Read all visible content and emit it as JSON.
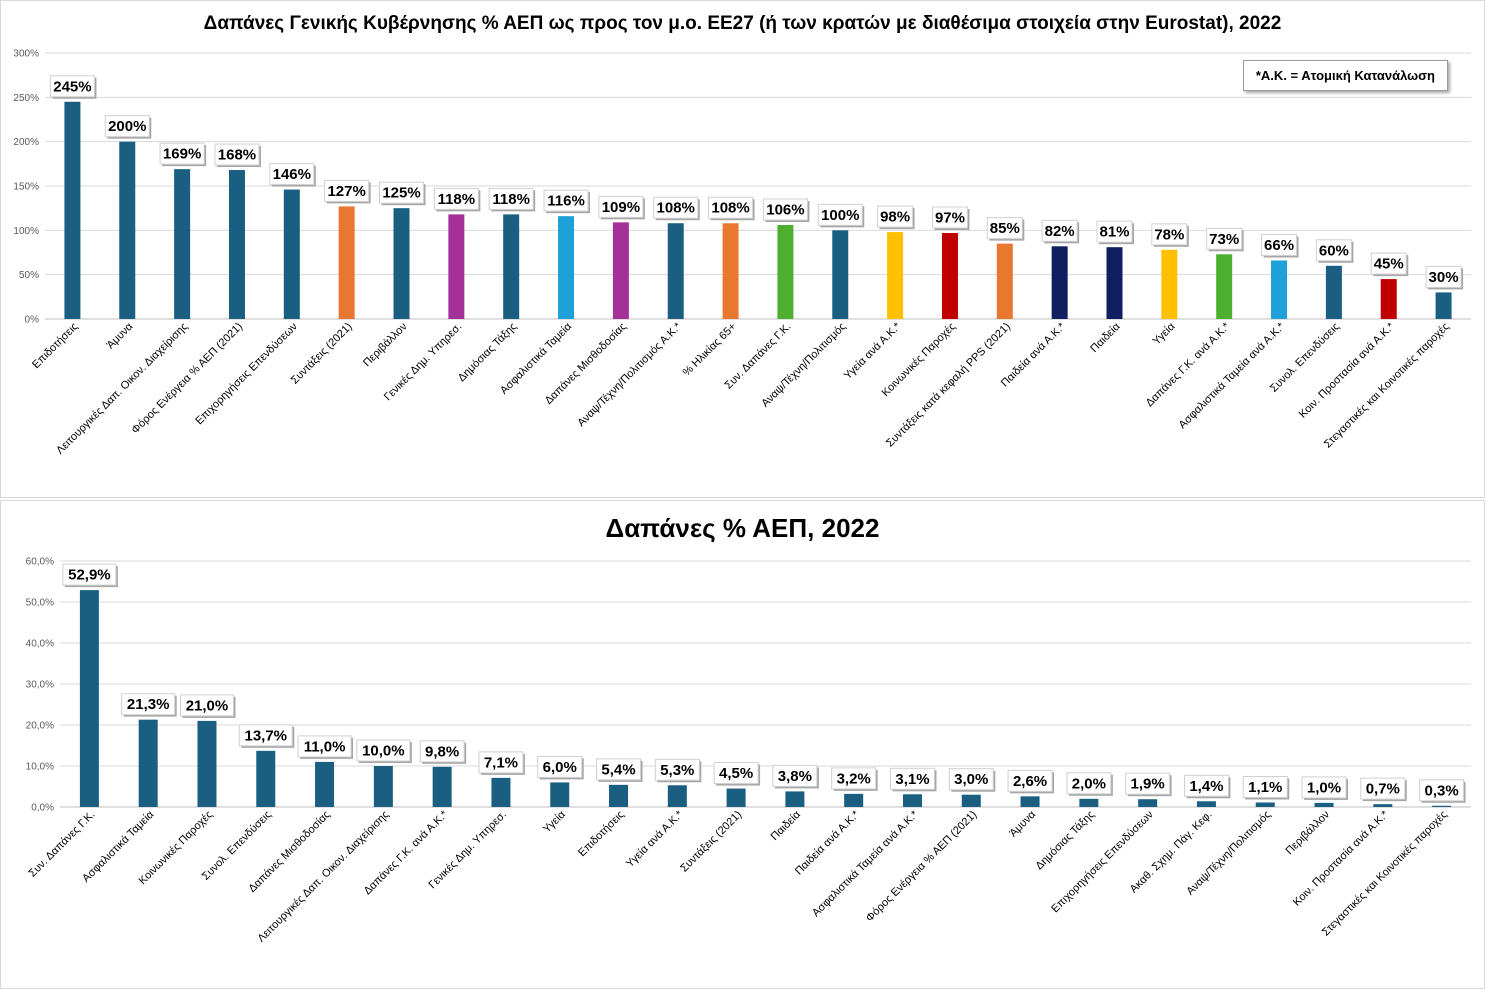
{
  "colors": {
    "blue": "#1a5f82",
    "orange": "#e87830",
    "purple": "#a33198",
    "skyblue": "#1ea0d8",
    "green": "#4caf2f",
    "yellow": "#ffc000",
    "red": "#c00000",
    "navy": "#0f1f60",
    "grid": "#d9d9d9"
  },
  "chart_data": [
    {
      "type": "bar",
      "title": "Δαπάνες Γενικής Κυβέρνησης % ΑΕΠ ως προς τον μ.ο. ΕΕ27 (ή των κρατών με διαθέσιμα στοιχεία στην Eurostat), 2022",
      "legend_note": "*Α.Κ. = Ατομική Κατανάλωση",
      "legend_position": "top-right",
      "ylim": [
        0,
        300
      ],
      "yticks": [
        0,
        50,
        100,
        150,
        200,
        250,
        300
      ],
      "ytick_labels": [
        "0%",
        "50%",
        "100%",
        "150%",
        "200%",
        "250%",
        "300%"
      ],
      "categories": [
        "Επιδοτήσεις",
        "Άμυνα",
        "Λειτουργικές Δαπ. Οικον. Διαχείρισης",
        "Φόρος Ενέργεια % ΑΕΠ (2021)",
        "Επιχορηγήσεις Επενδύσεων",
        "Συντάξεις (2021)",
        "Περιβάλλον",
        "Γενικές Δημ. Υπηρεσ.",
        "Δημόσιας Τάξης",
        "Ασφαλιστικά Ταμεία",
        "Δαπάνες Μισθοδοσίας",
        "Αναψ/Τέχνη/Πολιτισμός Α.Κ.*",
        "% Ηλικίας 65+",
        "Συν. Δαπάνες Γ.Κ.",
        "Αναψ/Τέχνη/Πολιτισμός",
        "Υγεία ανά Α.Κ.*",
        "Κοινωνικές Παροχές",
        "Συντάξεις κατά κεφαλή PPS (2021)",
        "Παιδεία ανά Α.Κ.*",
        "Παιδεία",
        "Υγεία",
        "Δαπάνες Γ.Κ. ανά Α.Κ.*",
        "Ασφαλιστικά Ταμεία ανά Α.Κ.*",
        "Συνολ. Επενδύσεις",
        "Κοιν. Προστασία ανά Α.Κ.*",
        "Στεγαστικές και Κοινοτικές παροχές"
      ],
      "values": [
        245,
        200,
        169,
        168,
        146,
        127,
        125,
        118,
        118,
        116,
        109,
        108,
        108,
        106,
        100,
        98,
        97,
        85,
        82,
        81,
        78,
        73,
        66,
        60,
        45,
        30
      ],
      "data_labels": [
        "245%",
        "200%",
        "169%",
        "168%",
        "146%",
        "127%",
        "125%",
        "118%",
        "118%",
        "116%",
        "109%",
        "108%",
        "108%",
        "106%",
        "100%",
        "98%",
        "97%",
        "85%",
        "82%",
        "81%",
        "78%",
        "73%",
        "66%",
        "60%",
        "45%",
        "30%"
      ],
      "bar_colors": [
        "blue",
        "blue",
        "blue",
        "blue",
        "blue",
        "orange",
        "blue",
        "purple",
        "blue",
        "skyblue",
        "purple",
        "blue",
        "orange",
        "green",
        "blue",
        "yellow",
        "red",
        "orange",
        "navy",
        "navy",
        "yellow",
        "green",
        "skyblue",
        "blue",
        "red",
        "blue"
      ],
      "grid": true
    },
    {
      "type": "bar",
      "title": "Δαπάνες % ΑΕΠ, 2022",
      "ylim": [
        0,
        60
      ],
      "yticks": [
        0,
        10,
        20,
        30,
        40,
        50,
        60
      ],
      "ytick_labels": [
        "0,0%",
        "10,0%",
        "20,0%",
        "30,0%",
        "40,0%",
        "50,0%",
        "60,0%"
      ],
      "categories": [
        "Συν. Δαπάνες Γ.Κ.",
        "Ασφαλιστικά Ταμεία",
        "Κοινωνικές Παροχές",
        "Συνολ. Επενδύσεις",
        "Δαπάνες Μισθοδοσίας",
        "Λειτουργικές Δαπ. Οικον. Διαχείρισης",
        "Δαπάνες Γ.Κ. ανά Α.Κ.*",
        "Γενικές Δημ. Υπηρεσ.",
        "Υγεία",
        "Επιδοτήσεις",
        "Υγεία ανά Α.Κ.*",
        "Συντάξεις (2021)",
        "Παιδεία",
        "Παιδεία ανά Α.Κ.*",
        "Ασφαλιστικά Ταμεία ανά Α.Κ.*",
        "Φόρος Ενέργεια % ΑΕΠ (2021)",
        "Άμυνα",
        "Δημόσιας Τάξης",
        "Επιχορηγήσεις Επενδύσεων",
        "Ακαθ. Σχημ. Πάγ. Κεφ.",
        "Αναψ/Τέχνη/Πολιτισμός",
        "Περιβάλλον",
        "Κοιν. Προστασία ανά Α.Κ.*",
        "Στεγαστικές και Κοινοτικές παροχές"
      ],
      "values": [
        52.9,
        21.3,
        21.0,
        13.7,
        11.0,
        10.0,
        9.8,
        7.1,
        6.0,
        5.4,
        5.3,
        4.5,
        3.8,
        3.2,
        3.1,
        3.0,
        2.6,
        2.0,
        1.9,
        1.4,
        1.1,
        1.0,
        0.7,
        0.3
      ],
      "data_labels": [
        "52,9%",
        "21,3%",
        "21,0%",
        "13,7%",
        "11,0%",
        "10,0%",
        "9,8%",
        "7,1%",
        "6,0%",
        "5,4%",
        "5,3%",
        "4,5%",
        "3,8%",
        "3,2%",
        "3,1%",
        "3,0%",
        "2,6%",
        "2,0%",
        "1,9%",
        "1,4%",
        "1,1%",
        "1,0%",
        "0,7%",
        "0,3%"
      ],
      "bar_color": "blue",
      "grid": true
    }
  ]
}
